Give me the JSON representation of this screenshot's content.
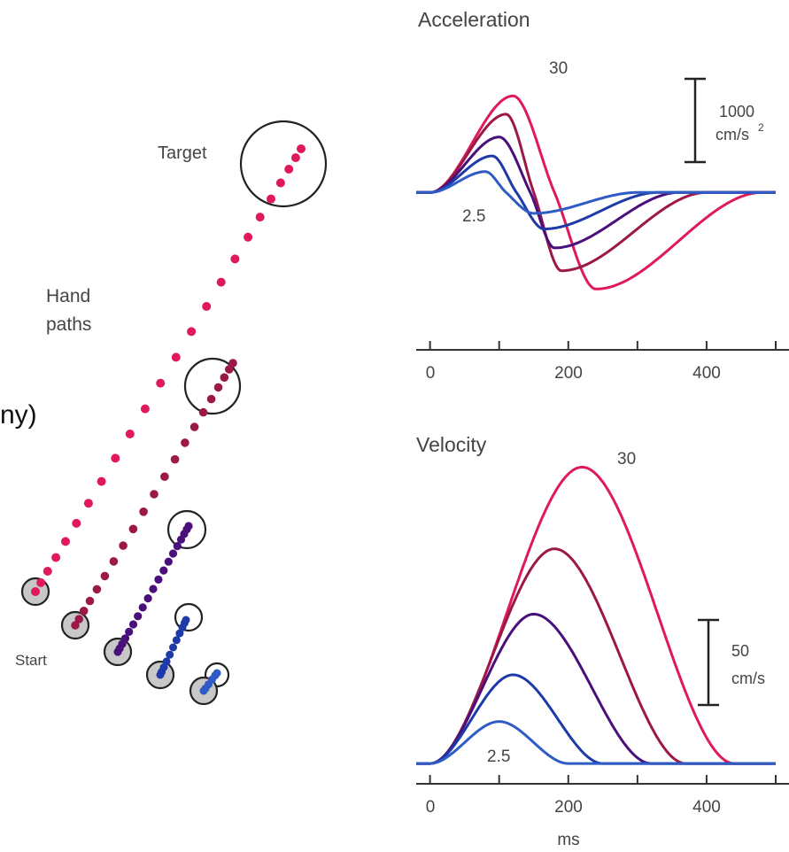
{
  "panel_left": {
    "cropped_text": "ny)",
    "target_label": "Target",
    "paths_label_line1": "Hand",
    "paths_label_line2": "paths",
    "start_label": "Start"
  },
  "colors": {
    "series": [
      "#e0195a",
      "#9b1848",
      "#4a0f7a",
      "#1d3aa8",
      "#2e5bc4"
    ],
    "axis": "#333333",
    "text": "#444444",
    "start_fill": "#c8c8c8"
  },
  "chart_data": [
    {
      "type": "line",
      "title": "Acceleration",
      "xlabel": "",
      "ylabel": "",
      "x_ticks": [
        0,
        200,
        400
      ],
      "x_tick_labels": [
        "0",
        "200",
        "400"
      ],
      "xlim": [
        -20,
        500
      ],
      "ylim": [
        -2100,
        2000
      ],
      "grid": false,
      "scale_bar": {
        "value": 1000,
        "unit_line1": "1000",
        "unit_line2": "cm/s",
        "unit_superscript": "2"
      },
      "curve_labels": {
        "largest": "30",
        "smallest": "2.5"
      },
      "series": [
        {
          "x": [
            0,
            120,
            180,
            240,
            480
          ],
          "y": [
            0,
            1480,
            0,
            -1480,
            0
          ]
        },
        {
          "x": [
            0,
            110,
            150,
            190,
            400
          ],
          "y": [
            0,
            1200,
            0,
            -1200,
            0
          ]
        },
        {
          "x": [
            0,
            100,
            145,
            180,
            360
          ],
          "y": [
            0,
            850,
            0,
            -850,
            0
          ]
        },
        {
          "x": [
            0,
            90,
            125,
            165,
            330
          ],
          "y": [
            0,
            560,
            0,
            -560,
            0
          ]
        },
        {
          "x": [
            0,
            80,
            110,
            150,
            300
          ],
          "y": [
            0,
            320,
            0,
            -320,
            0
          ]
        }
      ]
    },
    {
      "type": "line",
      "title": "Velocity",
      "xlabel": "ms",
      "ylabel": "",
      "x_ticks": [
        0,
        200,
        400
      ],
      "x_tick_labels": [
        "0",
        "200",
        "400"
      ],
      "xlim": [
        -20,
        500
      ],
      "ylim": [
        -3,
        145
      ],
      "grid": false,
      "scale_bar": {
        "value": 50,
        "unit_line1": "50",
        "unit_line2": "cm/s"
      },
      "curve_labels": {
        "largest": "30",
        "smallest": "2.5"
      },
      "series": [
        {
          "x": [
            0,
            220,
            440
          ],
          "y": [
            0,
            127,
            0
          ]
        },
        {
          "x": [
            0,
            180,
            370
          ],
          "y": [
            0,
            92,
            0
          ]
        },
        {
          "x": [
            0,
            150,
            320
          ],
          "y": [
            0,
            64,
            0
          ]
        },
        {
          "x": [
            0,
            120,
            250
          ],
          "y": [
            0,
            38,
            0
          ]
        },
        {
          "x": [
            0,
            100,
            200
          ],
          "y": [
            0,
            18,
            0
          ]
        }
      ]
    }
  ]
}
